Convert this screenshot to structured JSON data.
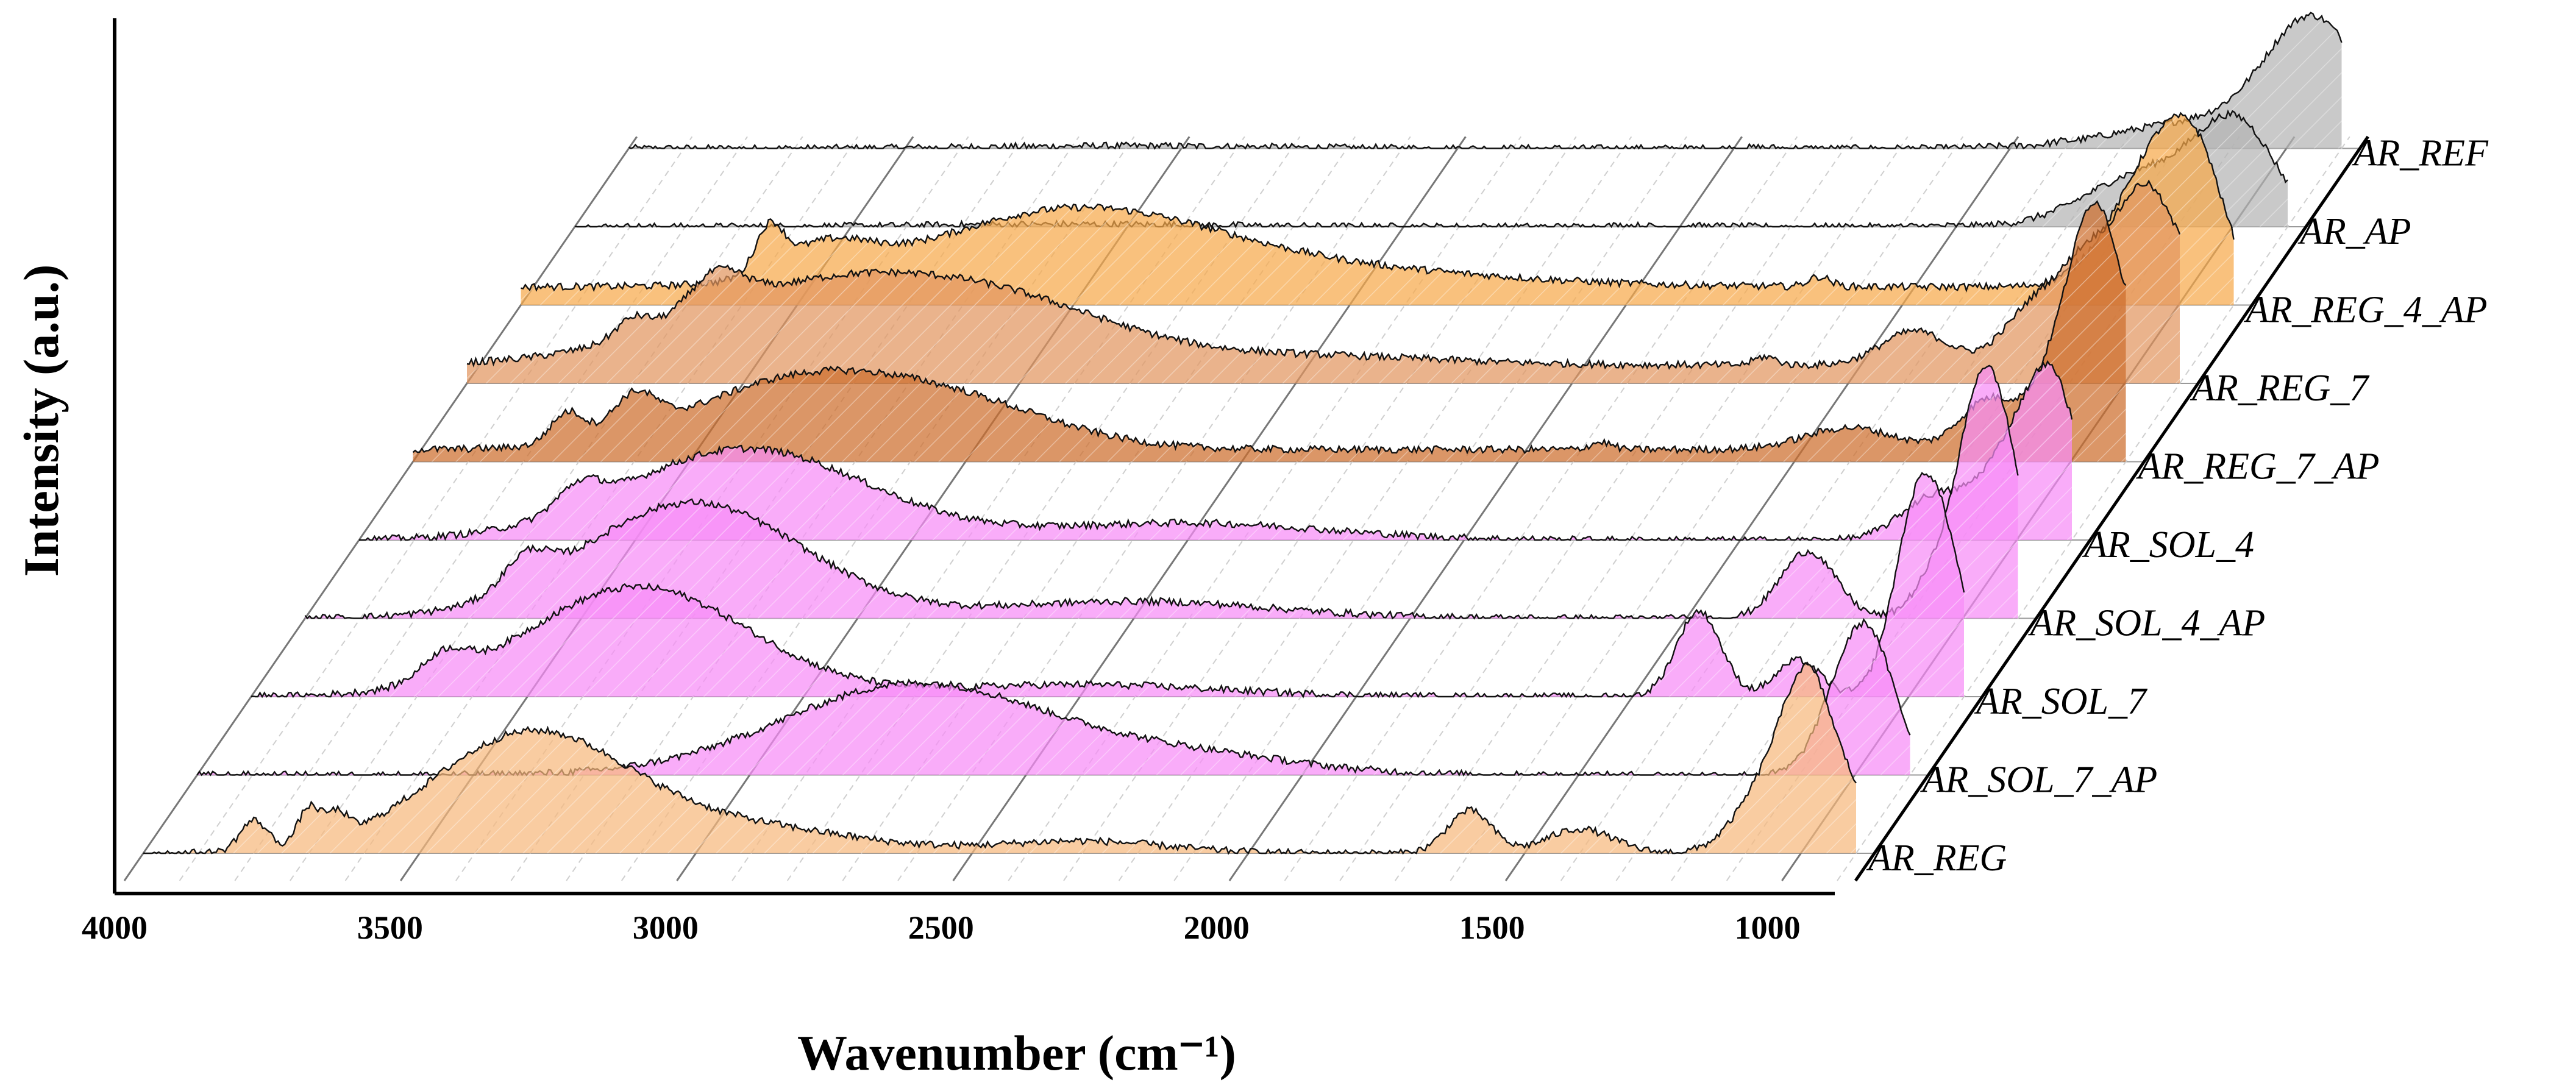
{
  "chart_data": {
    "type": "area",
    "subtype": "3d-waterfall",
    "title": "",
    "xlabel": "Wavenumber (cm⁻¹)",
    "ylabel": "Intensity (a.u.)",
    "xlim": [
      4000,
      900
    ],
    "x_ticks": [
      4000,
      3500,
      3000,
      2500,
      2000,
      1500,
      1000
    ],
    "grid": true,
    "series": [
      {
        "name": "AR_REF",
        "color": "#b4b4b4",
        "baseline": 0.0,
        "peaks": [
          [
            3100,
            0.02,
            250
          ],
          [
            1950,
            0.008,
            30
          ],
          [
            1530,
            0.006,
            40
          ],
          [
            1410,
            0.01,
            15
          ],
          [
            1150,
            0.22,
            150
          ],
          [
            950,
            1.0,
            85
          ]
        ]
      },
      {
        "name": "AR_AP",
        "color": "#b4b4b4",
        "baseline": 0.0,
        "peaks": [
          [
            3100,
            0.02,
            250
          ],
          [
            2100,
            0.01,
            30
          ],
          [
            1950,
            0.006,
            30
          ],
          [
            1530,
            0.006,
            40
          ],
          [
            1150,
            0.45,
            110
          ],
          [
            990,
            0.75,
            70
          ]
        ]
      },
      {
        "name": "AR_REG_4_AP",
        "color": "#f7a94b",
        "baseline": 0.15,
        "peaks": [
          [
            3550,
            0.35,
            25
          ],
          [
            3450,
            0.25,
            80
          ],
          [
            3000,
            0.62,
            260
          ],
          [
            2500,
            0.12,
            300
          ],
          [
            1650,
            0.08,
            20
          ],
          [
            1080,
            0.55,
            70
          ],
          [
            1000,
            0.95,
            60
          ],
          [
            950,
            0.35,
            40
          ]
        ]
      },
      {
        "name": "AR_REG_7",
        "color": "#e2955f",
        "baseline": 0.15,
        "peaks": [
          [
            3700,
            0.15,
            30
          ],
          [
            3550,
            0.3,
            50
          ],
          [
            3350,
            0.65,
            250
          ],
          [
            3000,
            0.35,
            200
          ],
          [
            2500,
            0.08,
            250
          ],
          [
            1650,
            0.07,
            20
          ],
          [
            1380,
            0.28,
            60
          ],
          [
            1150,
            0.55,
            60
          ],
          [
            1070,
            0.4,
            40
          ],
          [
            1000,
            0.65,
            60
          ],
          [
            950,
            0.95,
            50
          ],
          [
            860,
            0.55,
            40
          ]
        ]
      },
      {
        "name": "AR_REG_7_AP",
        "color": "#cd6e2d",
        "baseline": 0.1,
        "peaks": [
          [
            3720,
            0.25,
            30
          ],
          [
            3600,
            0.3,
            40
          ],
          [
            3300,
            0.55,
            200
          ],
          [
            3000,
            0.3,
            180
          ],
          [
            1850,
            0.06,
            20
          ],
          [
            1400,
            0.18,
            80
          ],
          [
            1150,
            0.4,
            50
          ],
          [
            1000,
            0.95,
            55
          ],
          [
            950,
            1.2,
            40
          ],
          [
            870,
            0.7,
            50
          ]
        ]
      },
      {
        "name": "AR_SOL_4",
        "color": "#f78cf7",
        "baseline": 0.0,
        "peaks": [
          [
            3600,
            0.2,
            40
          ],
          [
            3300,
            0.75,
            220
          ],
          [
            2500,
            0.14,
            250
          ],
          [
            1150,
            0.35,
            60
          ],
          [
            1000,
            0.75,
            60
          ],
          [
            930,
            1.0,
            45
          ]
        ]
      },
      {
        "name": "AR_SOL_4_AP",
        "color": "#f78cf7",
        "baseline": 0.0,
        "peaks": [
          [
            3600,
            0.25,
            40
          ],
          [
            3300,
            0.95,
            200
          ],
          [
            2500,
            0.14,
            250
          ],
          [
            1280,
            0.55,
            50
          ],
          [
            1050,
            0.3,
            40
          ],
          [
            960,
            2.0,
            45
          ],
          [
            900,
            0.35,
            30
          ]
        ]
      },
      {
        "name": "AR_SOL_7",
        "color": "#f78cf7",
        "baseline": 0.0,
        "peaks": [
          [
            3650,
            0.2,
            40
          ],
          [
            3300,
            0.9,
            200
          ],
          [
            2500,
            0.1,
            250
          ],
          [
            1380,
            0.7,
            40
          ],
          [
            1200,
            0.3,
            40
          ],
          [
            980,
            1.6,
            45
          ],
          [
            920,
            0.6,
            40
          ]
        ]
      },
      {
        "name": "AR_SOL_7_AP",
        "color": "#f78cf7",
        "baseline": 0.0,
        "peaks": [
          [
            2700,
            0.75,
            240
          ],
          [
            2200,
            0.15,
            200
          ],
          [
            1050,
            0.2,
            40
          ],
          [
            980,
            1.2,
            50
          ]
        ]
      },
      {
        "name": "AR_REG",
        "color": "#f7b87d",
        "baseline": 0.0,
        "peaks": [
          [
            3800,
            0.25,
            25
          ],
          [
            3700,
            0.3,
            20
          ],
          [
            3650,
            0.2,
            20
          ],
          [
            3300,
            0.98,
            180
          ],
          [
            2900,
            0.2,
            200
          ],
          [
            2300,
            0.1,
            150
          ],
          [
            1600,
            0.35,
            40
          ],
          [
            1400,
            0.2,
            60
          ],
          [
            1050,
            0.6,
            60
          ],
          [
            980,
            1.2,
            45
          ],
          [
            900,
            0.3,
            30
          ]
        ]
      }
    ]
  }
}
